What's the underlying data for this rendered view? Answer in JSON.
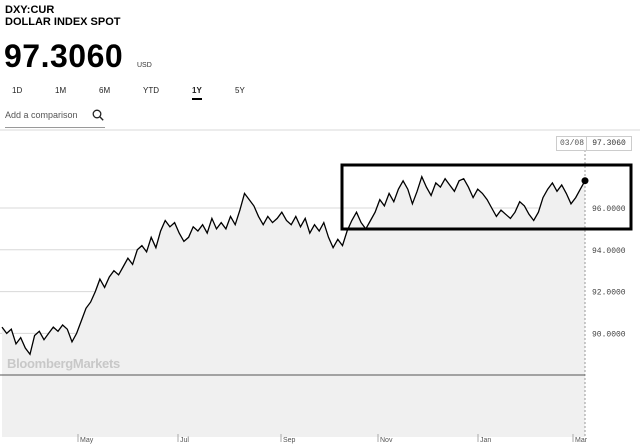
{
  "header": {
    "ticker": "DXY:CUR",
    "name": "DOLLAR INDEX SPOT",
    "price": "97.3060",
    "currency": "USD"
  },
  "tabs": [
    {
      "label": "1D",
      "active": false
    },
    {
      "label": "1M",
      "active": false
    },
    {
      "label": "6M",
      "active": false
    },
    {
      "label": "YTD",
      "active": false
    },
    {
      "label": "1Y",
      "active": true
    },
    {
      "label": "5Y",
      "active": false
    }
  ],
  "comparison": {
    "placeholder": "Add a comparison"
  },
  "cursor": {
    "date_label": "03/08",
    "value_label": "97.3060"
  },
  "watermark": "BloombergMarkets",
  "colors": {
    "line": "#000000",
    "fill": "#f0f0f0",
    "grid": "#d8d8d8"
  },
  "chart_data": {
    "type": "area",
    "title": "",
    "xlabel": "",
    "ylabel": "",
    "x_tick_labels": [
      "May",
      "Jul",
      "Sep",
      "Nov",
      "Jan",
      "Mar"
    ],
    "y_tick_labels": [
      "90.0000",
      "92.0000",
      "94.0000",
      "96.0000"
    ],
    "y_ticks": [
      90,
      92,
      94,
      96
    ],
    "ylim": [
      88.0,
      98.3
    ],
    "grid": true,
    "last_value": 97.306,
    "series": [
      {
        "values": [
          90.3,
          90.0,
          90.2,
          89.5,
          89.8,
          89.3,
          89.0,
          89.9,
          90.1,
          89.7,
          90.0,
          90.3,
          90.1,
          90.4,
          90.2,
          89.6,
          90.0,
          90.6,
          91.2,
          91.5,
          92.0,
          92.6,
          92.2,
          92.7,
          93.0,
          92.8,
          93.2,
          93.6,
          93.3,
          94.0,
          94.2,
          93.9,
          94.6,
          94.1,
          94.9,
          95.4,
          95.1,
          95.3,
          94.8,
          94.4,
          94.6,
          95.1,
          94.9,
          95.2,
          94.8,
          95.5,
          95.0,
          95.3,
          95.0,
          95.6,
          95.2,
          95.9,
          96.7,
          96.4,
          96.1,
          95.6,
          95.2,
          95.6,
          95.3,
          95.5,
          95.8,
          95.4,
          95.2,
          95.6,
          95.1,
          95.5,
          94.8,
          95.2,
          94.9,
          95.3,
          94.6,
          94.1,
          94.5,
          94.2,
          94.9,
          95.4,
          95.8,
          95.3,
          95.0,
          95.4,
          95.8,
          96.4,
          96.1,
          96.7,
          96.3,
          96.9,
          97.3,
          96.9,
          96.2,
          96.8,
          97.5,
          97.0,
          96.6,
          97.2,
          97.0,
          97.4,
          97.1,
          96.8,
          97.3,
          97.4,
          97.0,
          96.5,
          96.9,
          96.7,
          96.4,
          96.0,
          95.6,
          95.9,
          95.7,
          95.5,
          95.8,
          96.3,
          96.1,
          95.7,
          95.4,
          95.8,
          96.5,
          96.9,
          97.2,
          96.8,
          97.1,
          96.7,
          96.2,
          96.5,
          96.9,
          97.3
        ]
      }
    ]
  }
}
